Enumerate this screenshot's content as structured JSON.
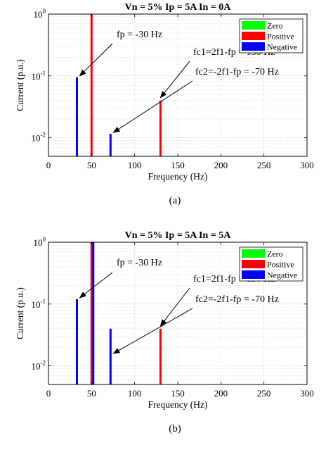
{
  "chart_data": [
    {
      "type": "bar",
      "title": "Vn = 5% Ip = 5A In = 0A",
      "caption": "(a)",
      "xlabel": "Frequency (Hz)",
      "ylabel": "Current (p.u.)",
      "xlim": [
        0,
        300
      ],
      "ylim": [
        0.005,
        1
      ],
      "yscale": "log",
      "grid": true,
      "legend_position": "top-right",
      "x_ticks": [
        "0",
        "50",
        "100",
        "150",
        "200",
        "250",
        "300"
      ],
      "y_ticks": [
        {
          "base": "10",
          "exp": "0",
          "value": 1
        },
        {
          "base": "10",
          "exp": "-1",
          "value": 0.1
        },
        {
          "base": "10",
          "exp": "-2",
          "value": 0.01
        }
      ],
      "series": [
        {
          "name": "Zero",
          "color": "#00ff00",
          "points": []
        },
        {
          "name": "Positive",
          "color": "#ff0000",
          "points": [
            {
              "x": 50,
              "y": 1.0
            },
            {
              "x": 130,
              "y": 0.04
            }
          ]
        },
        {
          "name": "Negative",
          "color": "#0000ff",
          "points": [
            {
              "x": 33,
              "y": 0.095
            },
            {
              "x": 72,
              "y": 0.0115
            }
          ]
        }
      ],
      "annotations": [
        {
          "text": "fp = -30 Hz",
          "target": {
            "x": 33,
            "y": 0.095
          }
        },
        {
          "text": "fc1=2f1-fp = 130 Hz",
          "target": {
            "x": 130,
            "y": 0.04
          }
        },
        {
          "text": "fc2=-2f1-fp = -70 Hz",
          "target": {
            "x": 72,
            "y": 0.0115
          }
        }
      ]
    },
    {
      "type": "bar",
      "title": "Vn = 5% Ip = 5A In = 5A",
      "caption": "(b)",
      "xlabel": "Frequency (Hz)",
      "ylabel": "Current (p.u.)",
      "xlim": [
        0,
        300
      ],
      "ylim": [
        0.005,
        1
      ],
      "yscale": "log",
      "grid": true,
      "legend_position": "top-right",
      "x_ticks": [
        "0",
        "50",
        "100",
        "150",
        "200",
        "250",
        "300"
      ],
      "y_ticks": [
        {
          "base": "10",
          "exp": "0",
          "value": 1
        },
        {
          "base": "10",
          "exp": "-1",
          "value": 0.1
        },
        {
          "base": "10",
          "exp": "-2",
          "value": 0.01
        }
      ],
      "series": [
        {
          "name": "Zero",
          "color": "#00ff00",
          "points": []
        },
        {
          "name": "Positive",
          "color": "#ff0000",
          "points": [
            {
              "x": 50,
              "y": 1.0
            },
            {
              "x": 130,
              "y": 0.04
            }
          ]
        },
        {
          "name": "Negative",
          "color": "#0000ff",
          "points": [
            {
              "x": 33,
              "y": 0.12
            },
            {
              "x": 52,
              "y": 1.0
            },
            {
              "x": 72,
              "y": 0.04
            }
          ]
        }
      ],
      "annotations": [
        {
          "text": "fp = -30 Hz",
          "target": {
            "x": 33,
            "y": 0.12
          }
        },
        {
          "text": "fc1=2f1-fp = 130 Hz",
          "target": {
            "x": 130,
            "y": 0.04
          }
        },
        {
          "text": "fc2=-2f1-fp = -70 Hz",
          "target": {
            "x": 72,
            "y": 0.015
          }
        }
      ]
    }
  ]
}
